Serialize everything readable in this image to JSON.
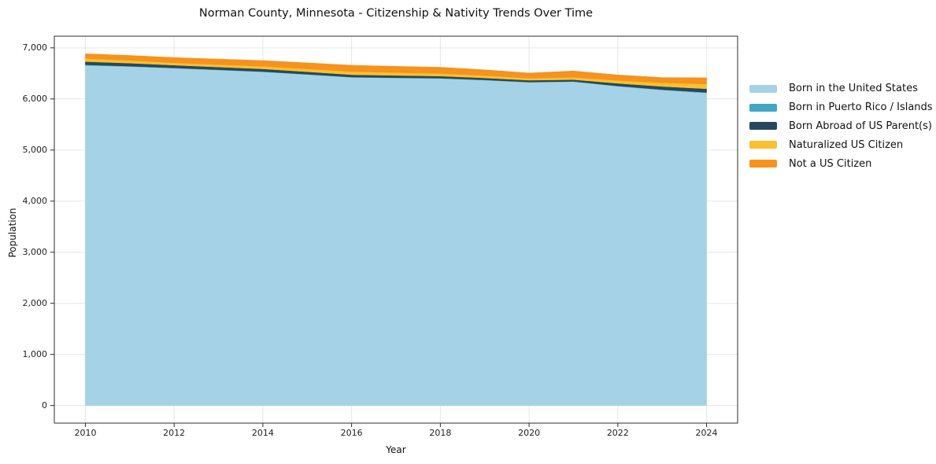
{
  "figure": {
    "title": "Norman County, Minnesota - Citizenship & Nativity Trends Over Time",
    "xlabel": "Year",
    "ylabel": "Population"
  },
  "chart_data": {
    "type": "area",
    "stacked": true,
    "title": "Norman County, Minnesota - Citizenship & Nativity Trends Over Time",
    "xlabel": "Year",
    "ylabel": "Population",
    "grid": true,
    "legend_position": "right-outside",
    "x": [
      2010,
      2011,
      2012,
      2013,
      2014,
      2015,
      2016,
      2017,
      2018,
      2019,
      2020,
      2021,
      2022,
      2023,
      2024
    ],
    "series": [
      {
        "name": "Born in the United States",
        "color": "#a5d2e6",
        "values": [
          6660,
          6634,
          6601,
          6566,
          6530,
          6478,
          6423,
          6411,
          6401,
          6368,
          6325,
          6338,
          6248,
          6175,
          6118
        ]
      },
      {
        "name": "Born in Puerto Rico / Islands",
        "color": "#41a7c4",
        "values": [
          8,
          8,
          7,
          6,
          6,
          5,
          5,
          5,
          5,
          5,
          6,
          6,
          7,
          8,
          10
        ]
      },
      {
        "name": "Born Abroad of US Parent(s)",
        "color": "#26485c",
        "values": [
          62,
          58,
          53,
          52,
          52,
          49,
          46,
          44,
          41,
          38,
          35,
          33,
          50,
          61,
          71
        ]
      },
      {
        "name": "Naturalized US Citizen",
        "color": "#fbc02d",
        "values": [
          62,
          53,
          46,
          48,
          51,
          56,
          62,
          56,
          51,
          46,
          41,
          46,
          57,
          72,
          92
        ]
      },
      {
        "name": "Not a US Citizen",
        "color": "#f6921e",
        "values": [
          92,
          98,
          103,
          108,
          112,
          118,
          123,
          122,
          122,
          113,
          100,
          124,
          108,
          103,
          123
        ]
      }
    ],
    "x_ticks": [
      2010,
      2012,
      2014,
      2016,
      2018,
      2020,
      2022,
      2024
    ],
    "y_ticks": [
      0,
      1000,
      2000,
      3000,
      4000,
      5000,
      6000,
      7000
    ],
    "xlim": [
      2009.3,
      2024.7
    ],
    "ylim": [
      -344,
      7228
    ],
    "colors": {
      "grid": "#e6e6e6",
      "spine": "#2b2b2b",
      "background": "#ffffff"
    }
  }
}
